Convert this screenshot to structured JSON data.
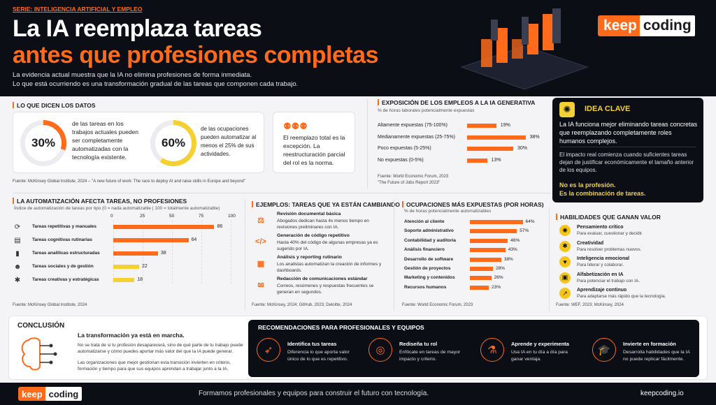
{
  "header": {
    "series": "SERIE: INTELIGENCIA ARTIFICIAL Y EMPLEO",
    "title_line1": "La IA reemplaza tareas",
    "title_line2": "antes que profesiones completas",
    "intro1": "La evidencia actual muestra que la IA no elimina profesiones de forma inmediata.",
    "intro2": "Lo que está ocurriendo es una transformación gradual de las tareas que componen cada trabajo.",
    "logo_a": "keep",
    "logo_b": "coding"
  },
  "datos": {
    "title": "LO QUE DICEN LOS DATOS",
    "stat1_pct": 30,
    "stat1_value": "30%",
    "stat1_text": "de las tareas en los trabajos actuales pueden ser completamente automatizadas con la tecnología existente.",
    "stat2_pct": 60,
    "stat2_value": "60%",
    "stat2_text": "de las ocupaciones pueden automatizar al menos el 25% de sus actividades.",
    "card3_text": "El reemplazo total es la excepción. La reestructuración parcial del rol es la norma.",
    "source": "Fuente: McKinsey Global Institute, 2024 – \"A new future of work: The race to deploy AI and raise skills in Europe and beyond\""
  },
  "exposicion": {
    "title": "EXPOSICIÓN DE LOS EMPLEOS A LA IA GENERATIVA",
    "subtitle": "% de horas laborales potencialmente expuestas",
    "rows": [
      {
        "label": "Altamente expuestas (75-100%)",
        "value": 19,
        "text": "19%"
      },
      {
        "label": "Medianamente expuestas (25-75%)",
        "value": 38,
        "text": "38%"
      },
      {
        "label": "Poco expuestas (5-25%)",
        "value": 30,
        "text": "30%"
      },
      {
        "label": "No expuestas (0-5%)",
        "value": 13,
        "text": "13%"
      }
    ],
    "source1": "Fuente: World Economic Forum, 2023",
    "source2": "\"The Future of Jobs Report 2023\""
  },
  "idea": {
    "title": "IDEA CLAVE",
    "p1": "La IA funciona mejor eliminando tareas concretas que reemplazando completamente roles humanos complejos.",
    "p2": "El impacto real comienza cuando suficientes tareas dejan de justificar económicamente el tamaño anterior de los equipos.",
    "p3a": "No es la profesión.",
    "p3b": "Es la combinación de tareas."
  },
  "automatizacion": {
    "title": "LA AUTOMATIZACIÓN AFECTA TAREAS, NO PROFESIONES",
    "subtitle": "Índice de automatización de tareas por tipo (0 = nada automatizable | 100 = totalmente automatizable)",
    "ticks": [
      "0",
      "25",
      "50",
      "75",
      "100"
    ],
    "rows": [
      {
        "label": "Tareas repetitivas y manuales",
        "value": 86,
        "text": "86",
        "color": "#ff6b1a",
        "icon": "refresh-icon",
        "glyph": "⟳"
      },
      {
        "label": "Tareas cognitivas rutinarias",
        "value": 64,
        "text": "64",
        "color": "#ff6b1a",
        "icon": "document-icon",
        "glyph": "▤"
      },
      {
        "label": "Tareas analíticas estructuradas",
        "value": 38,
        "text": "38",
        "color": "#ff6b1a",
        "icon": "bar-chart-icon",
        "glyph": "▮"
      },
      {
        "label": "Tareas sociales y de gestión",
        "value": 22,
        "text": "22",
        "color": "#f5d033",
        "icon": "people-icon",
        "glyph": "☻"
      },
      {
        "label": "Tareas creativas y estratégicas",
        "value": 18,
        "text": "18",
        "color": "#f5d033",
        "icon": "lightbulb-icon",
        "glyph": "✱"
      }
    ],
    "source": "Fuente: McKinsey Global Institute, 2024"
  },
  "ejemplos": {
    "title": "EJEMPLOS: TAREAS QUE YA ESTÁN CAMBIANDO",
    "items": [
      {
        "title": "Revisión documental básica",
        "desc": "Abogados dedican hasta 4x menos tiempo en revisiones preliminares con IA.",
        "icon": "scale-icon",
        "glyph": "⚖"
      },
      {
        "title": "Generación de código repetitivo",
        "desc": "Hasta 40% del código de algunas empresas ya es sugerido por IA.",
        "icon": "code-icon",
        "glyph": "</>"
      },
      {
        "title": "Análisis y reporting rutinario",
        "desc": "Los analistas automatizan la creación de informes y dashboards.",
        "icon": "table-icon",
        "glyph": "▦"
      },
      {
        "title": "Redacción de comunicaciones estándar",
        "desc": "Correos, resúmenes y respuestas frecuentes se generan en segundos.",
        "icon": "mail-icon",
        "glyph": "✉"
      }
    ],
    "source": "Fuente: McKinsey, 2024; GitHub, 2023; Deloitte, 2024"
  },
  "ocupaciones": {
    "title": "OCUPACIONES MÁS EXPUESTAS (POR HORAS)",
    "subtitle": "% de horas potencialmente automatizables",
    "rows": [
      {
        "label": "Atención al cliente",
        "value": 64,
        "text": "64%"
      },
      {
        "label": "Soporte administrativo",
        "value": 57,
        "text": "57%"
      },
      {
        "label": "Contabilidad y auditoría",
        "value": 46,
        "text": "46%"
      },
      {
        "label": "Análisis financiero",
        "value": 43,
        "text": "43%"
      },
      {
        "label": "Desarrollo de software",
        "value": 38,
        "text": "38%"
      },
      {
        "label": "Gestión de proyectos",
        "value": 28,
        "text": "28%"
      },
      {
        "label": "Marketing y contenidos",
        "value": 26,
        "text": "26%"
      },
      {
        "label": "Recursos humanos",
        "value": 23,
        "text": "23%"
      }
    ],
    "source": "Fuente: World Economic Forum, 2023"
  },
  "habilidades": {
    "title": "HABILIDADES QUE GANAN VALOR",
    "items": [
      {
        "title": "Pensamiento crítico",
        "desc": "Para evaluar, cuestionar y decidir.",
        "icon": "brain-icon",
        "glyph": "✺"
      },
      {
        "title": "Creatividad",
        "desc": "Para resolver problemas nuevos.",
        "icon": "lightbulb-icon",
        "glyph": "✱"
      },
      {
        "title": "Inteligencia emocional",
        "desc": "Para liderar y colaborar.",
        "icon": "heart-icon",
        "glyph": "♥"
      },
      {
        "title": "Alfabetización en IA",
        "desc": "Para potenciar el trabajo con IA.",
        "icon": "chip-icon",
        "glyph": "▣"
      },
      {
        "title": "Aprendizaje continuo",
        "desc": "Para adaptarse más rápido que la tecnología.",
        "icon": "growth-icon",
        "glyph": "↗"
      }
    ],
    "source": "Fuente: WEF, 2023; McKinsey, 2024"
  },
  "conclusion": {
    "title": "CONCLUSIÓN",
    "lead": "La transformación ya está en marcha.",
    "p1": "No se trata de si tu profesión desaparecerá, sino de qué parte de tu trabajo puede automatizarse y cómo puedes aportar más valor del que la IA puede generar.",
    "p2": "Las organizaciones que mejor gestionan esta transición invierten en criterio, formación y tiempo para que sus equipos aprendan a trabajar junto a la IA."
  },
  "recomendaciones": {
    "title": "RECOMENDACIONES PARA PROFESIONALES Y EQUIPOS",
    "items": [
      {
        "title": "Identifica tus tareas",
        "desc": "Diferencia lo que aporta valor único de lo que es repetitivo.",
        "icon": "rocket-icon",
        "glyph": "➶"
      },
      {
        "title": "Rediseña tu rol",
        "desc": "Enfócate en tareas de mayor impacto y criterio.",
        "icon": "target-icon",
        "glyph": "◎"
      },
      {
        "title": "Aprende y experimenta",
        "desc": "Usa IA en tu día a día para ganar ventaja.",
        "icon": "flask-icon",
        "glyph": "⚗"
      },
      {
        "title": "Invierte en formación",
        "desc": "Desarrolla habilidades que la IA no puede replicar fácilmente.",
        "icon": "graduation-cap-icon",
        "glyph": "🎓"
      }
    ]
  },
  "footer": {
    "tagline": "Formamos profesionales y equipos para construir el futuro con tecnología.",
    "url": "keepcoding.io",
    "logo_a": "keep",
    "logo_b": "coding"
  },
  "colors": {
    "accent": "#ff6b1a",
    "yellow": "#f5d033",
    "dark": "#0c0e16"
  }
}
